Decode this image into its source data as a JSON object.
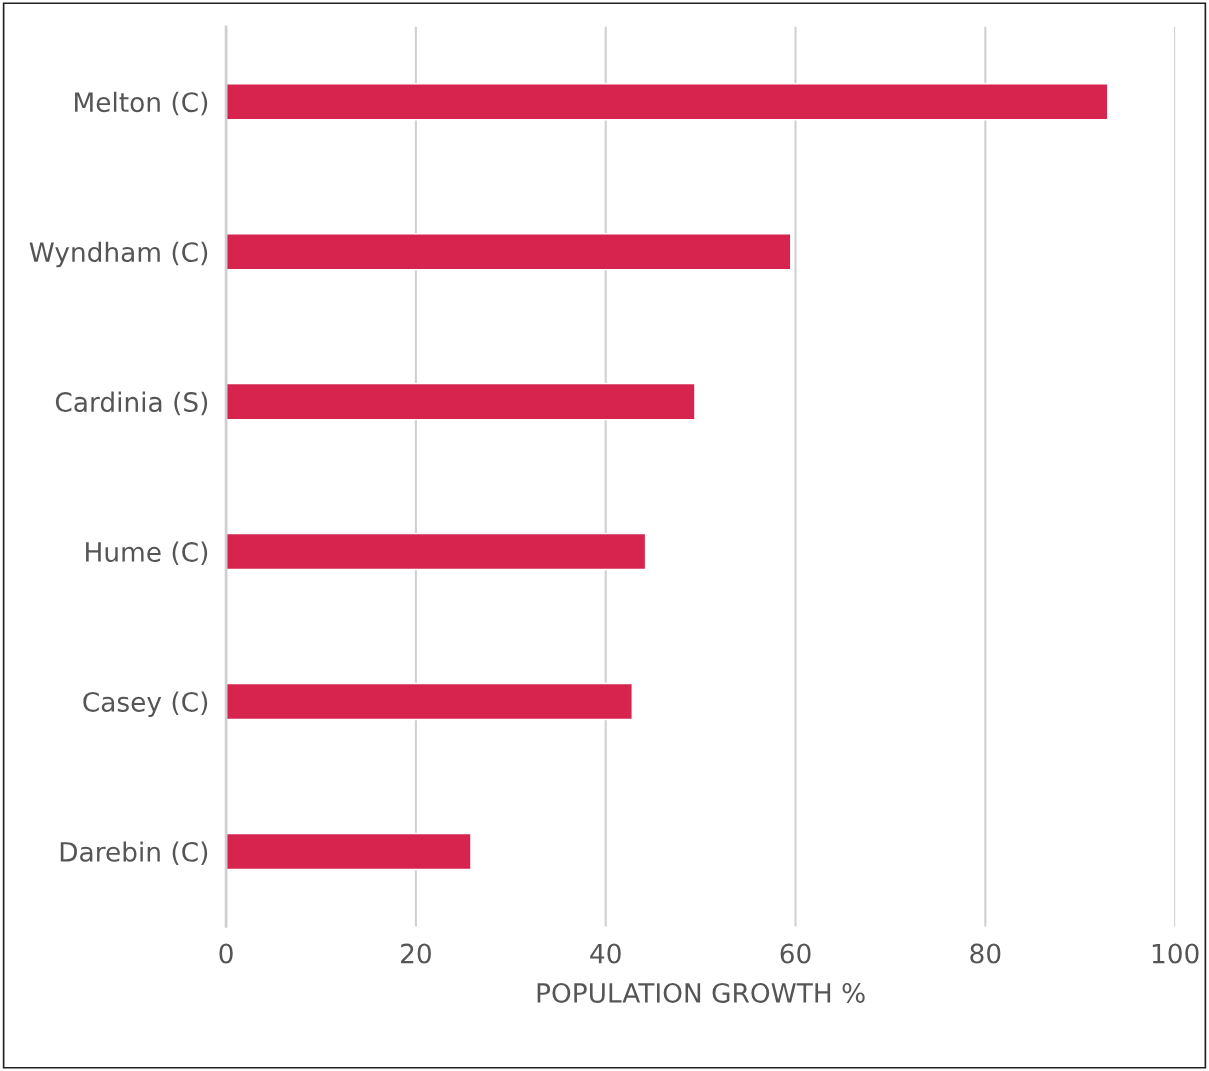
{
  "chart_data": {
    "type": "bar",
    "orientation": "horizontal",
    "xlabel": "POPULATION GROWTH %",
    "categories": [
      "Melton (C)",
      "Wyndham (C)",
      "Cardinia (S)",
      "Hume (C)",
      "Casey (C)",
      "Darebin (C)"
    ],
    "values": [
      92.9,
      59.5,
      49.4,
      44.2,
      42.8,
      25.8
    ],
    "color": "#d6244f",
    "xlim": [
      0,
      100
    ],
    "xticks": [
      0,
      20,
      40,
      60,
      80,
      100
    ],
    "grid": "x"
  }
}
